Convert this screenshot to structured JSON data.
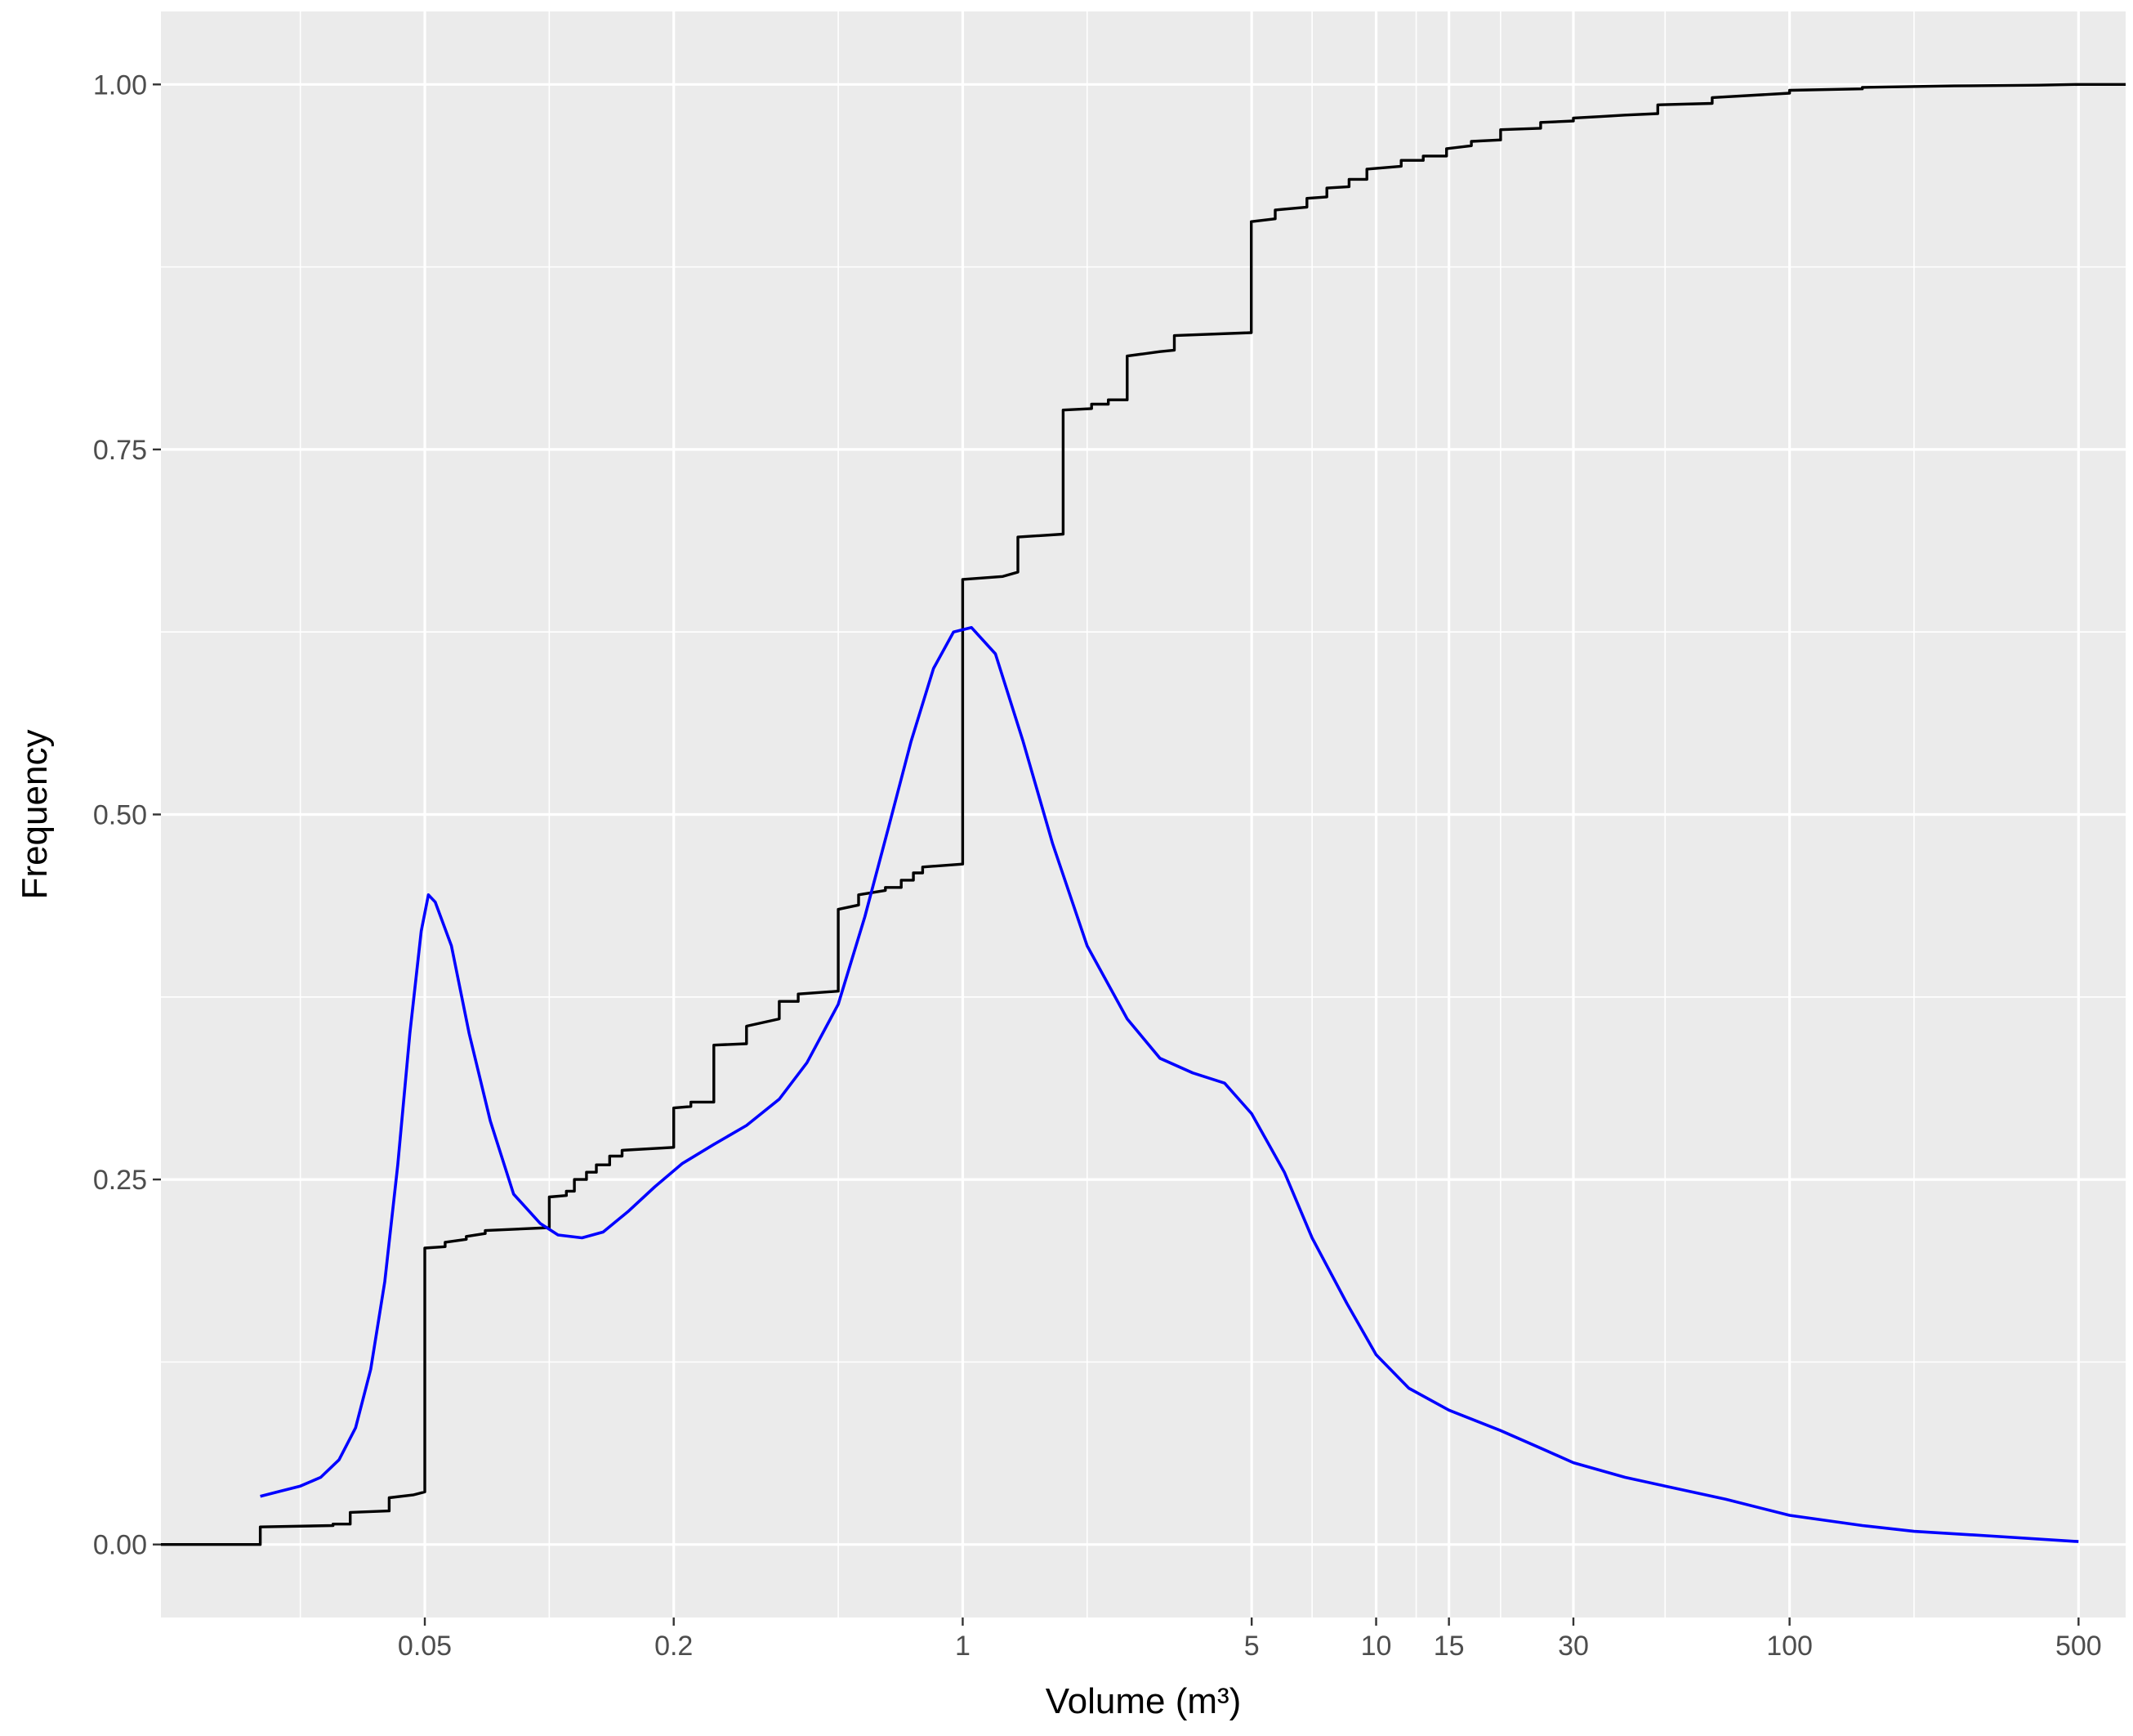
{
  "chart_data": {
    "type": "line",
    "title": "",
    "xlabel": "Volume (m³)",
    "ylabel": "Frequency",
    "x_scale": "log10",
    "xlim": [
      0.0115,
      650
    ],
    "ylim": [
      -0.05,
      1.05
    ],
    "x_ticks": [
      {
        "value": 0.05,
        "label": "0.05"
      },
      {
        "value": 0.2,
        "label": "0.2"
      },
      {
        "value": 1,
        "label": "1"
      },
      {
        "value": 5,
        "label": "5"
      },
      {
        "value": 10,
        "label": "10"
      },
      {
        "value": 15,
        "label": "15"
      },
      {
        "value": 30,
        "label": "30"
      },
      {
        "value": 100,
        "label": "100"
      },
      {
        "value": 500,
        "label": "500"
      }
    ],
    "x_minor_gridlines": [
      0.025,
      0.1,
      0.5,
      2,
      7,
      12.5,
      20,
      50,
      200
    ],
    "y_ticks": [
      {
        "value": 0,
        "label": "0.00"
      },
      {
        "value": 0.25,
        "label": "0.25"
      },
      {
        "value": 0.5,
        "label": "0.50"
      },
      {
        "value": 0.75,
        "label": "0.75"
      },
      {
        "value": 1,
        "label": "1.00"
      }
    ],
    "y_minor_gridlines": [
      0.125,
      0.375,
      0.625,
      0.875
    ],
    "grid": true,
    "background": "#ebebeb",
    "gridline_color": "#ffffff",
    "series": [
      {
        "kind": "ecdf-step",
        "color": "#000000",
        "points": [
          [
            0.0115,
            0.0
          ],
          [
            0.02,
            0.0
          ],
          [
            0.02,
            0.012
          ],
          [
            0.03,
            0.013
          ],
          [
            0.03,
            0.014
          ],
          [
            0.033,
            0.014
          ],
          [
            0.033,
            0.022
          ],
          [
            0.041,
            0.023
          ],
          [
            0.041,
            0.032
          ],
          [
            0.047,
            0.034
          ],
          [
            0.05,
            0.036
          ],
          [
            0.05,
            0.203
          ],
          [
            0.056,
            0.204
          ],
          [
            0.056,
            0.207
          ],
          [
            0.063,
            0.209
          ],
          [
            0.063,
            0.211
          ],
          [
            0.07,
            0.213
          ],
          [
            0.07,
            0.215
          ],
          [
            0.1,
            0.217
          ],
          [
            0.1,
            0.238
          ],
          [
            0.11,
            0.239
          ],
          [
            0.11,
            0.242
          ],
          [
            0.115,
            0.242
          ],
          [
            0.115,
            0.25
          ],
          [
            0.123,
            0.25
          ],
          [
            0.123,
            0.255
          ],
          [
            0.13,
            0.255
          ],
          [
            0.13,
            0.26
          ],
          [
            0.14,
            0.26
          ],
          [
            0.14,
            0.266
          ],
          [
            0.15,
            0.266
          ],
          [
            0.15,
            0.27
          ],
          [
            0.2,
            0.272
          ],
          [
            0.2,
            0.299
          ],
          [
            0.22,
            0.3
          ],
          [
            0.22,
            0.303
          ],
          [
            0.25,
            0.303
          ],
          [
            0.25,
            0.342
          ],
          [
            0.3,
            0.343
          ],
          [
            0.3,
            0.355
          ],
          [
            0.36,
            0.36
          ],
          [
            0.36,
            0.372
          ],
          [
            0.4,
            0.372
          ],
          [
            0.4,
            0.377
          ],
          [
            0.5,
            0.379
          ],
          [
            0.5,
            0.435
          ],
          [
            0.56,
            0.438
          ],
          [
            0.56,
            0.445
          ],
          [
            0.65,
            0.448
          ],
          [
            0.65,
            0.45
          ],
          [
            0.71,
            0.45
          ],
          [
            0.71,
            0.455
          ],
          [
            0.76,
            0.455
          ],
          [
            0.76,
            0.46
          ],
          [
            0.8,
            0.46
          ],
          [
            0.8,
            0.464
          ],
          [
            1.0,
            0.466
          ],
          [
            1.0,
            0.661
          ],
          [
            1.25,
            0.663
          ],
          [
            1.36,
            0.666
          ],
          [
            1.36,
            0.69
          ],
          [
            1.75,
            0.692
          ],
          [
            1.75,
            0.777
          ],
          [
            2.05,
            0.778
          ],
          [
            2.05,
            0.781
          ],
          [
            2.25,
            0.781
          ],
          [
            2.25,
            0.784
          ],
          [
            2.5,
            0.784
          ],
          [
            2.5,
            0.814
          ],
          [
            3.0,
            0.817
          ],
          [
            3.25,
            0.818
          ],
          [
            3.25,
            0.828
          ],
          [
            4.99,
            0.83
          ],
          [
            4.99,
            0.906
          ],
          [
            5.7,
            0.908
          ],
          [
            5.7,
            0.914
          ],
          [
            6.8,
            0.916
          ],
          [
            6.8,
            0.922
          ],
          [
            7.6,
            0.923
          ],
          [
            7.6,
            0.929
          ],
          [
            8.6,
            0.93
          ],
          [
            8.6,
            0.935
          ],
          [
            9.5,
            0.935
          ],
          [
            9.5,
            0.942
          ],
          [
            11.5,
            0.944
          ],
          [
            11.5,
            0.948
          ],
          [
            13,
            0.948
          ],
          [
            13,
            0.951
          ],
          [
            14.8,
            0.951
          ],
          [
            14.8,
            0.956
          ],
          [
            17,
            0.958
          ],
          [
            17,
            0.961
          ],
          [
            20,
            0.962
          ],
          [
            20,
            0.969
          ],
          [
            25,
            0.97
          ],
          [
            25,
            0.974
          ],
          [
            30,
            0.975
          ],
          [
            30,
            0.977
          ],
          [
            35,
            0.978
          ],
          [
            40,
            0.979
          ],
          [
            48,
            0.98
          ],
          [
            48,
            0.986
          ],
          [
            65,
            0.987
          ],
          [
            65,
            0.991
          ],
          [
            100,
            0.994
          ],
          [
            100,
            0.996
          ],
          [
            150,
            0.997
          ],
          [
            150,
            0.998
          ],
          [
            250,
            0.999
          ],
          [
            400,
            0.9995
          ],
          [
            500,
            1.0
          ],
          [
            650,
            1.0
          ]
        ]
      },
      {
        "kind": "density",
        "color": "#0000ff",
        "points": [
          [
            0.02,
            0.033
          ],
          [
            0.022,
            0.036
          ],
          [
            0.025,
            0.04
          ],
          [
            0.028,
            0.046
          ],
          [
            0.031,
            0.058
          ],
          [
            0.034,
            0.08
          ],
          [
            0.037,
            0.12
          ],
          [
            0.04,
            0.18
          ],
          [
            0.043,
            0.26
          ],
          [
            0.046,
            0.35
          ],
          [
            0.049,
            0.42
          ],
          [
            0.051,
            0.445
          ],
          [
            0.053,
            0.44
          ],
          [
            0.058,
            0.41
          ],
          [
            0.064,
            0.35
          ],
          [
            0.072,
            0.29
          ],
          [
            0.082,
            0.24
          ],
          [
            0.095,
            0.22
          ],
          [
            0.105,
            0.212
          ],
          [
            0.12,
            0.21
          ],
          [
            0.135,
            0.214
          ],
          [
            0.155,
            0.228
          ],
          [
            0.18,
            0.245
          ],
          [
            0.21,
            0.261
          ],
          [
            0.25,
            0.274
          ],
          [
            0.3,
            0.287
          ],
          [
            0.36,
            0.305
          ],
          [
            0.42,
            0.33
          ],
          [
            0.5,
            0.37
          ],
          [
            0.58,
            0.43
          ],
          [
            0.66,
            0.49
          ],
          [
            0.75,
            0.55
          ],
          [
            0.85,
            0.6
          ],
          [
            0.95,
            0.625
          ],
          [
            1.05,
            0.628
          ],
          [
            1.2,
            0.61
          ],
          [
            1.4,
            0.55
          ],
          [
            1.65,
            0.48
          ],
          [
            2.0,
            0.41
          ],
          [
            2.5,
            0.36
          ],
          [
            3.0,
            0.333
          ],
          [
            3.6,
            0.323
          ],
          [
            4.3,
            0.316
          ],
          [
            5.0,
            0.295
          ],
          [
            6.0,
            0.255
          ],
          [
            7.0,
            0.21
          ],
          [
            8.5,
            0.165
          ],
          [
            10,
            0.13
          ],
          [
            12,
            0.107
          ],
          [
            15,
            0.092
          ],
          [
            20,
            0.078
          ],
          [
            25,
            0.066
          ],
          [
            30,
            0.056
          ],
          [
            40,
            0.046
          ],
          [
            50,
            0.04
          ],
          [
            70,
            0.031
          ],
          [
            100,
            0.02
          ],
          [
            150,
            0.013
          ],
          [
            200,
            0.009
          ],
          [
            300,
            0.006
          ],
          [
            500,
            0.002
          ]
        ]
      }
    ]
  }
}
